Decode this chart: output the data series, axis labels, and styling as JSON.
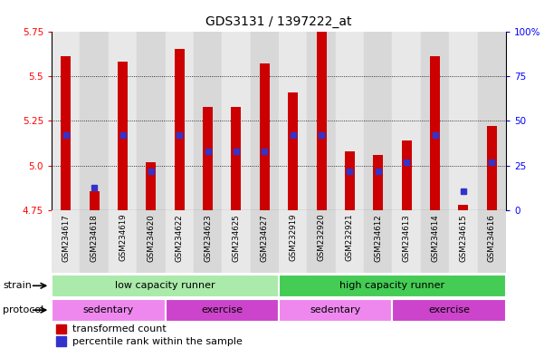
{
  "title": "GDS3131 / 1397222_at",
  "samples": [
    "GSM234617",
    "GSM234618",
    "GSM234619",
    "GSM234620",
    "GSM234622",
    "GSM234623",
    "GSM234625",
    "GSM234627",
    "GSM232919",
    "GSM232920",
    "GSM232921",
    "GSM234612",
    "GSM234613",
    "GSM234614",
    "GSM234615",
    "GSM234616"
  ],
  "bar_tops": [
    5.61,
    4.86,
    5.58,
    5.02,
    5.65,
    5.33,
    5.33,
    5.57,
    5.41,
    5.87,
    5.08,
    5.06,
    5.14,
    5.61,
    4.78,
    5.22
  ],
  "bar_base": 4.75,
  "percentile_values": [
    5.17,
    4.88,
    5.17,
    4.97,
    5.17,
    5.08,
    5.08,
    5.08,
    5.17,
    5.17,
    4.97,
    4.97,
    5.02,
    5.17,
    4.86,
    5.02
  ],
  "ymin": 4.75,
  "ymax": 5.75,
  "yticks": [
    4.75,
    5.0,
    5.25,
    5.5,
    5.75
  ],
  "bar_color": "#CC0000",
  "dot_color": "#3333CC",
  "col_colors": [
    "#E8E8E8",
    "#D8D8D8"
  ],
  "strain_groups": [
    {
      "label": "low capacity runner",
      "start": 0,
      "end": 7,
      "color": "#AAEAAA"
    },
    {
      "label": "high capacity runner",
      "start": 8,
      "end": 15,
      "color": "#44CC55"
    }
  ],
  "protocol_groups": [
    {
      "label": "sedentary",
      "start": 0,
      "end": 3,
      "color": "#EE88EE"
    },
    {
      "label": "exercise",
      "start": 4,
      "end": 7,
      "color": "#CC44CC"
    },
    {
      "label": "sedentary",
      "start": 8,
      "end": 11,
      "color": "#EE88EE"
    },
    {
      "label": "exercise",
      "start": 12,
      "end": 15,
      "color": "#CC44CC"
    }
  ],
  "strain_label": "strain",
  "protocol_label": "protocol",
  "legend_items": [
    {
      "label": "transformed count",
      "color": "#CC0000"
    },
    {
      "label": "percentile rank within the sample",
      "color": "#3333CC"
    }
  ],
  "right_ytick_labels": [
    "0",
    "25",
    "50",
    "75",
    "100%"
  ],
  "right_yticks": [
    0,
    25,
    50,
    75,
    100
  ],
  "figsize": [
    6.01,
    3.84
  ],
  "dpi": 100,
  "bar_width": 0.35
}
